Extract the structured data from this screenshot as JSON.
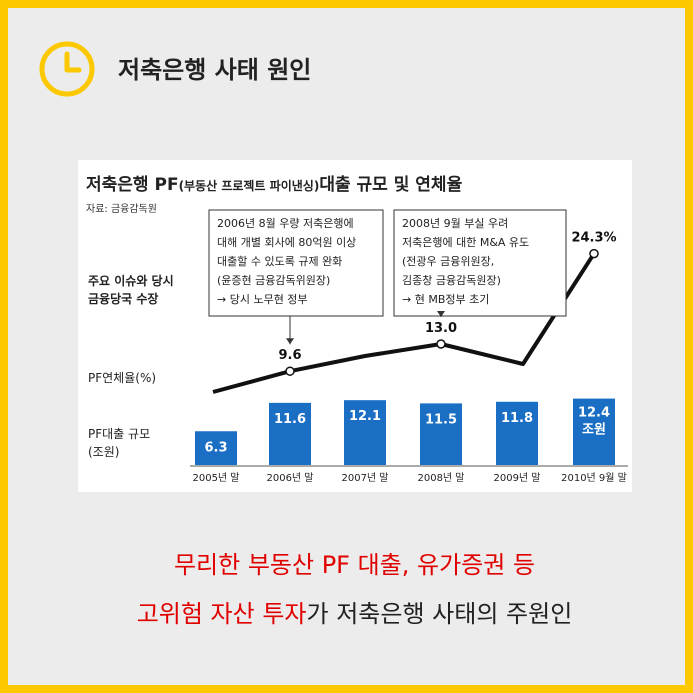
{
  "header": {
    "title": "저축은행 사태 원인",
    "icon": "clock-icon",
    "accent_color": "#FCC800"
  },
  "chart_data": {
    "type": "bar",
    "title": "저축은행 PF",
    "title_paren": "(부동산 프로젝트 파이낸싱)",
    "title_tail": "대출 규모 및 연체율",
    "source": "자료: 금융감독원",
    "categories": [
      "2005년 말",
      "2006년 말",
      "2007년 말",
      "2008년 말",
      "2009년 말",
      "2010년 9월 말"
    ],
    "bar_series": {
      "label_line1": "PF대출 규모",
      "label_line2": "(조원)",
      "values": [
        6.3,
        11.6,
        12.1,
        11.5,
        11.8,
        12.4
      ],
      "value_labels": [
        "6.3",
        "11.6",
        "12.1",
        "11.5",
        "11.8",
        "12.4"
      ],
      "last_unit": "조원",
      "color": "#1A6FC4"
    },
    "line_series": {
      "label": "PF연체율(%)",
      "values": [
        7.0,
        9.6,
        11.5,
        13.0,
        10.5,
        24.3
      ],
      "value_labels": [
        "",
        "9.6",
        "",
        "13.0",
        "",
        "24.3%"
      ]
    },
    "issue_label_line1": "주요 이슈와 당시",
    "issue_label_line2": "금융당국 수장",
    "annotations": [
      {
        "lines": [
          "2006년 8월 우량 저축은행에",
          "대해 개별 회사에 80억원 이상",
          "대출할 수 있도록 규제 완화",
          "(윤증현 금융감독위원장)",
          "→ 당시 노무현 정부"
        ],
        "target_index": 1
      },
      {
        "lines": [
          "2008년 9월 부실 우려",
          "저축은행에 대한 M&A 유도",
          "(전광우 금융위원장,",
          "김종창 금융감독원장)",
          "→ 현 MB정부 초기"
        ],
        "target_index": 3
      }
    ]
  },
  "caption": {
    "line1_red": "무리한 부동산 PF 대출, 유가증권 등",
    "line2_red": "고위험 자산 투자",
    "line2_rest": "가 저축은행 사태의 주원인"
  }
}
